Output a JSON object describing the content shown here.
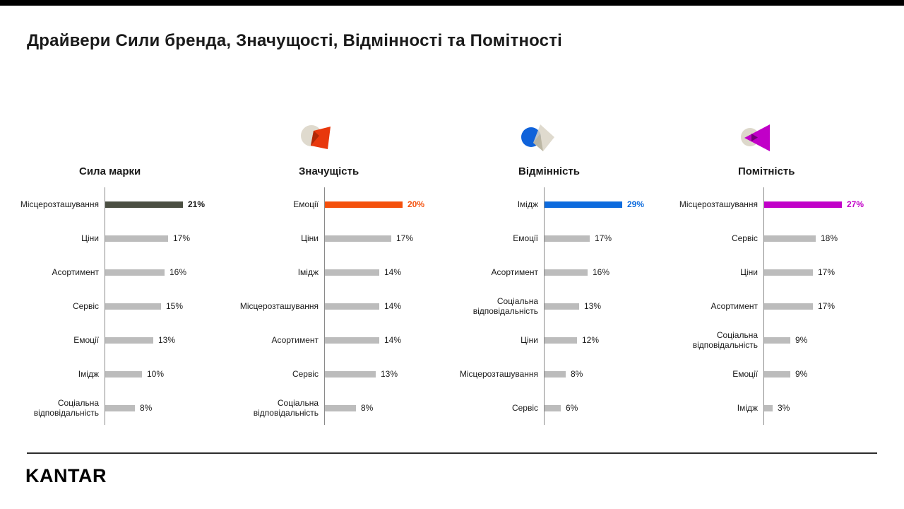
{
  "page": {
    "title": "Драйвери Сили бренда, Значущості, Відмінності та Помітності"
  },
  "footer": {
    "logo": "KANTAR"
  },
  "colors": {
    "bar_grey": "#bcbcbc",
    "axis": "#8a8a8a",
    "topbar": "#000000"
  },
  "chart_data": [
    {
      "type": "bar",
      "orientation": "horizontal",
      "id": "brand-strength",
      "title": "Сила марки",
      "icon": "brand-strength-icon",
      "accent": "#4b4f42",
      "value_color": "#1a1a1a",
      "unit": "%",
      "xlim": [
        0,
        30
      ],
      "categories": [
        "Місцерозташування",
        "Ціни",
        "Асортимент",
        "Сервіс",
        "Емоції",
        "Імідж",
        "Соціальна відповідальність"
      ],
      "values": [
        21,
        17,
        16,
        15,
        13,
        10,
        8
      ]
    },
    {
      "type": "bar",
      "orientation": "horizontal",
      "id": "meaningful",
      "title": "Значущість",
      "icon": "meaningful-icon",
      "accent": "#f4500c",
      "value_color": "#f4500c",
      "unit": "%",
      "xlim": [
        0,
        30
      ],
      "categories": [
        "Емоції",
        "Ціни",
        "Імідж",
        "Місцерозташування",
        "Асортимент",
        "Сервіс",
        "Соціальна відповідальність"
      ],
      "values": [
        20,
        17,
        14,
        14,
        14,
        13,
        8
      ]
    },
    {
      "type": "bar",
      "orientation": "horizontal",
      "id": "different",
      "title": "Відмінність",
      "icon": "different-icon",
      "accent": "#0d6bdd",
      "value_color": "#0d6bdd",
      "unit": "%",
      "xlim": [
        0,
        30
      ],
      "categories": [
        "Імідж",
        "Емоції",
        "Асортимент",
        "Соціальна відповідальність",
        "Ціни",
        "Місцерозташування",
        "Сервіс"
      ],
      "values": [
        29,
        17,
        16,
        13,
        12,
        8,
        6
      ]
    },
    {
      "type": "bar",
      "orientation": "horizontal",
      "id": "salient",
      "title": "Помітність",
      "icon": "salient-icon",
      "accent": "#c100c8",
      "value_color": "#c100c8",
      "unit": "%",
      "xlim": [
        0,
        30
      ],
      "categories": [
        "Місцерозташування",
        "Сервіс",
        "Ціни",
        "Асортимент",
        "Соціальна відповідальність",
        "Емоції",
        "Імідж"
      ],
      "values": [
        27,
        18,
        17,
        17,
        9,
        9,
        3
      ]
    }
  ]
}
